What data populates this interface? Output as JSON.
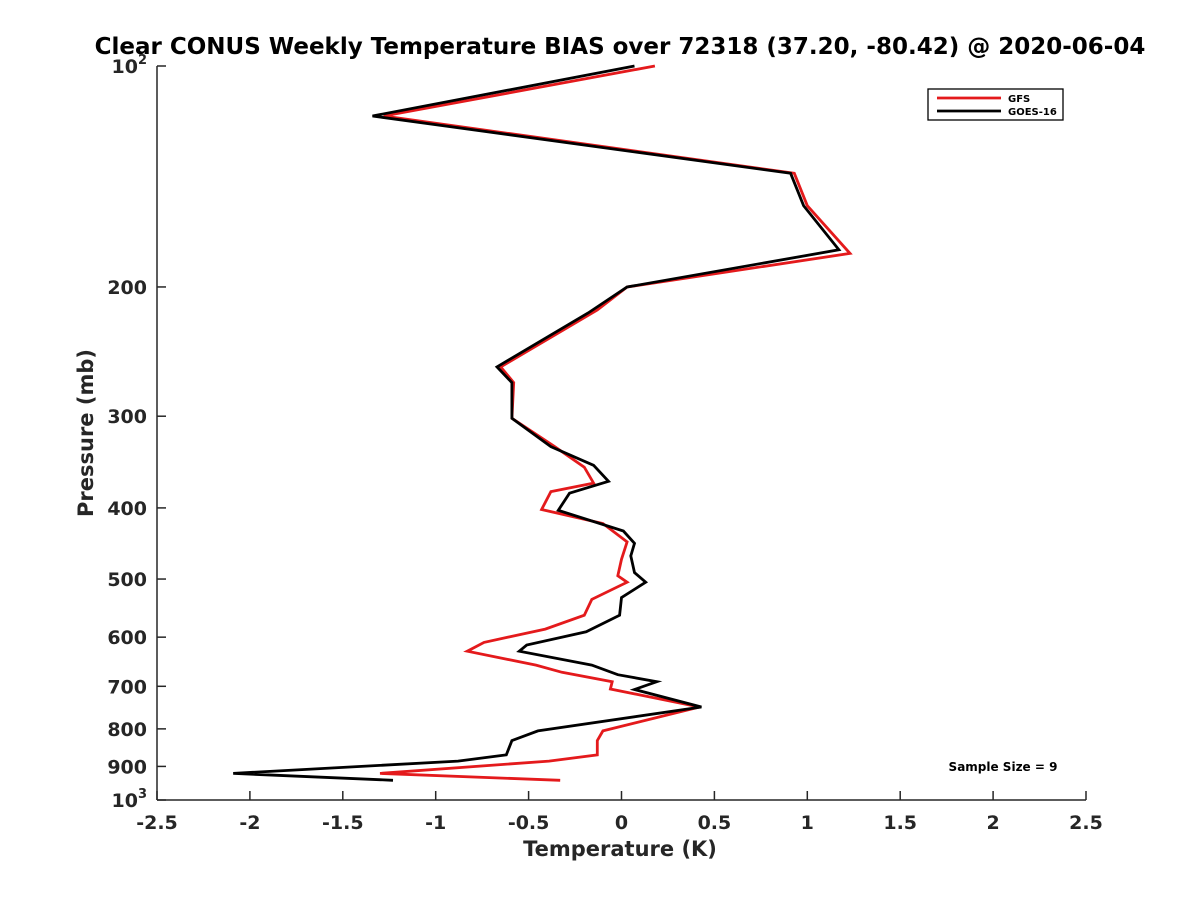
{
  "chart_data": {
    "type": "line",
    "title": "Clear CONUS Weekly Temperature BIAS over 72318 (37.20, -80.42) @ 2020-06-04",
    "xlabel": "Temperature (K)",
    "ylabel": "Pressure (mb)",
    "xlim": [
      -2.5,
      2.5
    ],
    "ylim": [
      100,
      1000
    ],
    "y_scale": "log",
    "y_reversed": true,
    "grid": false,
    "legend_position": "top-right",
    "x_ticks": [
      -2.5,
      -2,
      -1.5,
      -1,
      -0.5,
      0,
      0.5,
      1,
      1.5,
      2,
      2.5
    ],
    "x_tick_labels": [
      "-2.5",
      "-2",
      "-1.5",
      "-1",
      "-0.5",
      "0",
      "0.5",
      "1",
      "1.5",
      "2",
      "2.5"
    ],
    "y_ticks": [
      {
        "value": 100,
        "base": "10",
        "exp": "2"
      },
      {
        "value": 200,
        "base": "200",
        "exp": ""
      },
      {
        "value": 300,
        "base": "300",
        "exp": ""
      },
      {
        "value": 400,
        "base": "400",
        "exp": ""
      },
      {
        "value": 500,
        "base": "500",
        "exp": ""
      },
      {
        "value": 600,
        "base": "600",
        "exp": ""
      },
      {
        "value": 700,
        "base": "700",
        "exp": ""
      },
      {
        "value": 800,
        "base": "800",
        "exp": ""
      },
      {
        "value": 900,
        "base": "900",
        "exp": ""
      },
      {
        "value": 1000,
        "base": "10",
        "exp": "3"
      }
    ],
    "series": [
      {
        "name": "GFS",
        "color": "#e41a1c",
        "points": [
          [
            0.18,
            100
          ],
          [
            -1.28,
            117
          ],
          [
            0.93,
            140
          ],
          [
            1.0,
            155
          ],
          [
            1.23,
            180
          ],
          [
            0.03,
            200
          ],
          [
            -0.13,
            215
          ],
          [
            -0.65,
            257
          ],
          [
            -0.58,
            270
          ],
          [
            -0.59,
            302
          ],
          [
            -0.36,
            330
          ],
          [
            -0.2,
            352
          ],
          [
            -0.15,
            370
          ],
          [
            -0.38,
            380
          ],
          [
            -0.43,
            402
          ],
          [
            -0.1,
            420
          ],
          [
            0.03,
            445
          ],
          [
            0.0,
            470
          ],
          [
            -0.02,
            495
          ],
          [
            0.03,
            505
          ],
          [
            -0.16,
            533
          ],
          [
            -0.2,
            560
          ],
          [
            -0.41,
            585
          ],
          [
            -0.74,
            610
          ],
          [
            -0.83,
            627
          ],
          [
            -0.46,
            655
          ],
          [
            -0.32,
            670
          ],
          [
            -0.05,
            690
          ],
          [
            -0.06,
            706
          ],
          [
            0.42,
            747
          ],
          [
            -0.1,
            805
          ],
          [
            -0.13,
            830
          ],
          [
            -0.13,
            868
          ],
          [
            -0.39,
            885
          ],
          [
            -1.3,
            920
          ],
          [
            -0.33,
            940
          ]
        ]
      },
      {
        "name": "GOES-16",
        "color": "#000000",
        "points": [
          [
            0.07,
            100
          ],
          [
            -1.34,
            117
          ],
          [
            0.91,
            140
          ],
          [
            0.98,
            155
          ],
          [
            1.17,
            178
          ],
          [
            0.03,
            200
          ],
          [
            -0.18,
            217
          ],
          [
            -0.67,
            257
          ],
          [
            -0.59,
            270
          ],
          [
            -0.59,
            302
          ],
          [
            -0.38,
            330
          ],
          [
            -0.15,
            350
          ],
          [
            -0.07,
            368
          ],
          [
            -0.28,
            382
          ],
          [
            -0.34,
            403
          ],
          [
            0.01,
            430
          ],
          [
            0.07,
            447
          ],
          [
            0.05,
            465
          ],
          [
            0.07,
            490
          ],
          [
            0.13,
            505
          ],
          [
            0.0,
            530
          ],
          [
            -0.01,
            560
          ],
          [
            -0.19,
            590
          ],
          [
            -0.51,
            615
          ],
          [
            -0.55,
            627
          ],
          [
            -0.16,
            655
          ],
          [
            -0.02,
            675
          ],
          [
            0.19,
            690
          ],
          [
            0.07,
            707
          ],
          [
            0.43,
            747
          ],
          [
            -0.45,
            805
          ],
          [
            -0.59,
            830
          ],
          [
            -0.62,
            868
          ],
          [
            -0.88,
            885
          ],
          [
            -2.09,
            920
          ],
          [
            -1.23,
            940
          ]
        ]
      }
    ],
    "annotation": "Sample Size = 9"
  }
}
